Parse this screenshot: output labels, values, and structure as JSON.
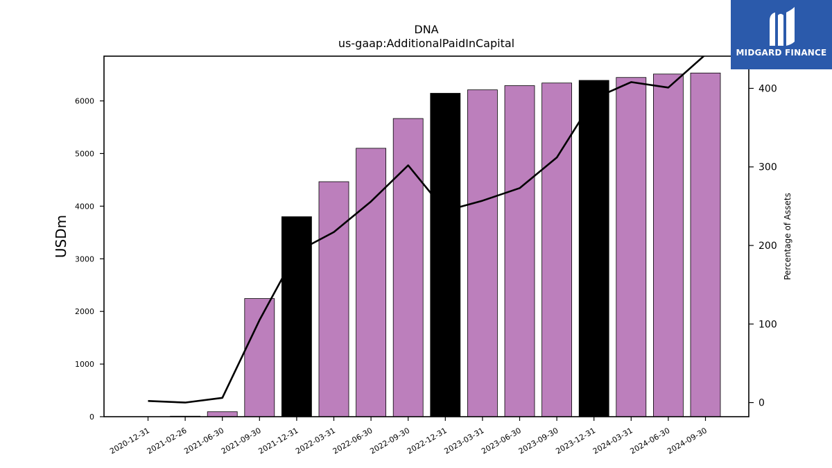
{
  "logo": {
    "text": "MIDGARD FINANCE"
  },
  "chart_data": {
    "type": "bar",
    "title": "DNA",
    "subtitle": "us-gaap:AdditionalPaidInCapital",
    "ylabel": "USDm",
    "ylabel_right": "Percentage of Assets",
    "categories": [
      "2020-12-31",
      "2021-02-26",
      "2021-06-30",
      "2021-09-30",
      "2021-12-31",
      "2022-03-31",
      "2022-06-30",
      "2022-09-30",
      "2022-12-31",
      "2023-03-31",
      "2023-06-30",
      "2023-09-30",
      "2023-12-31",
      "2024-03-31",
      "2024-06-30",
      "2024-09-30"
    ],
    "series": [
      {
        "type": "bar",
        "values": [
          0,
          10,
          95,
          2245,
          3800,
          4465,
          5100,
          5665,
          6145,
          6210,
          6290,
          6340,
          6390,
          6445,
          6510,
          6530
        ]
      },
      {
        "type": "line",
        "axis": "right",
        "values": [
          2,
          0,
          6,
          105,
          192,
          217,
          256,
          302,
          244,
          257,
          273,
          312,
          387,
          408,
          401,
          443
        ]
      }
    ],
    "highlighted_categories": [
      "2021-12-31",
      "2022-12-31",
      "2023-12-31"
    ],
    "bar_color": "#bc7fbc",
    "highlight_color": "#000000",
    "line_color": "#000000",
    "ylim": [
      0,
      6850
    ],
    "yticks": [
      0,
      1000,
      2000,
      3000,
      4000,
      5000,
      6000
    ],
    "ylim_right": [
      -18,
      441
    ],
    "yticks_right": [
      0,
      100,
      200,
      300,
      400
    ],
    "grid": false,
    "legend": "none"
  }
}
